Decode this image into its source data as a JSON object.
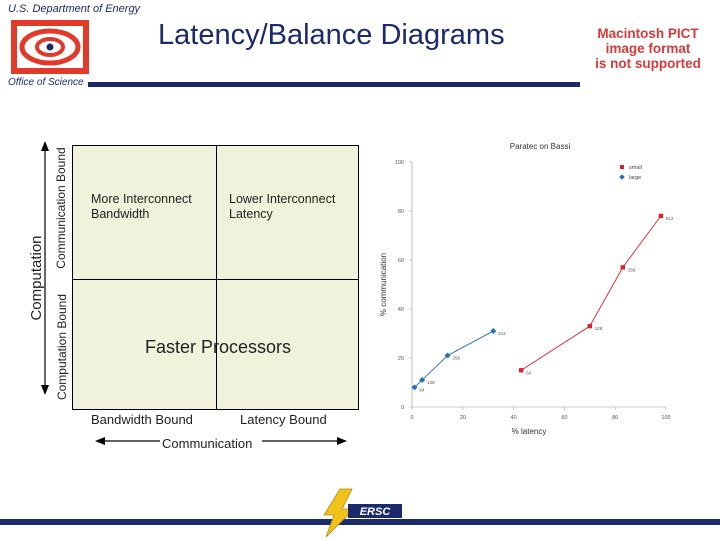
{
  "header": {
    "department": "U.S. Department of Energy",
    "office": "Office of Science",
    "title": "Latency/Balance Diagrams",
    "pict_note": [
      "Macintosh PICT",
      "image format",
      "is not supported"
    ]
  },
  "diagram": {
    "quadrants": {
      "top_left": [
        "More Interconnect",
        "Bandwidth"
      ],
      "top_right": [
        "Lower Interconnect",
        "Latency"
      ],
      "center": "Faster Processors"
    },
    "x_labels": {
      "left": "Bandwidth Bound",
      "right": "Latency Bound",
      "title": "Communication"
    },
    "y_labels": {
      "upper": "Communication Bound",
      "lower": "Computation Bound",
      "title": "Computation"
    }
  },
  "chart_data": {
    "type": "scatter",
    "title": "Paratec on Bassi",
    "xlabel": "% latency",
    "ylabel": "% communication",
    "xlim": [
      0,
      100
    ],
    "ylim": [
      0,
      100
    ],
    "xticks": [
      0,
      20,
      40,
      60,
      80,
      100
    ],
    "yticks": [
      0,
      20,
      40,
      60,
      80,
      100
    ],
    "legend_position": "top-right",
    "series": [
      {
        "name": "small",
        "color": "#e0202a",
        "marker": "square",
        "points": [
          {
            "x": 43,
            "y": 15,
            "label": "64"
          },
          {
            "x": 70,
            "y": 33,
            "label": "128"
          },
          {
            "x": 83,
            "y": 57,
            "label": "256"
          },
          {
            "x": 98,
            "y": 78,
            "label": "512"
          }
        ]
      },
      {
        "name": "large",
        "color": "#2a6fb5",
        "marker": "diamond",
        "points": [
          {
            "x": 1,
            "y": 8,
            "label": "64"
          },
          {
            "x": 4,
            "y": 11,
            "label": "128"
          },
          {
            "x": 14,
            "y": 21,
            "label": "256"
          },
          {
            "x": 32,
            "y": 31,
            "label": "512"
          }
        ]
      }
    ]
  },
  "footer": {
    "logo_text": "ERSC"
  }
}
